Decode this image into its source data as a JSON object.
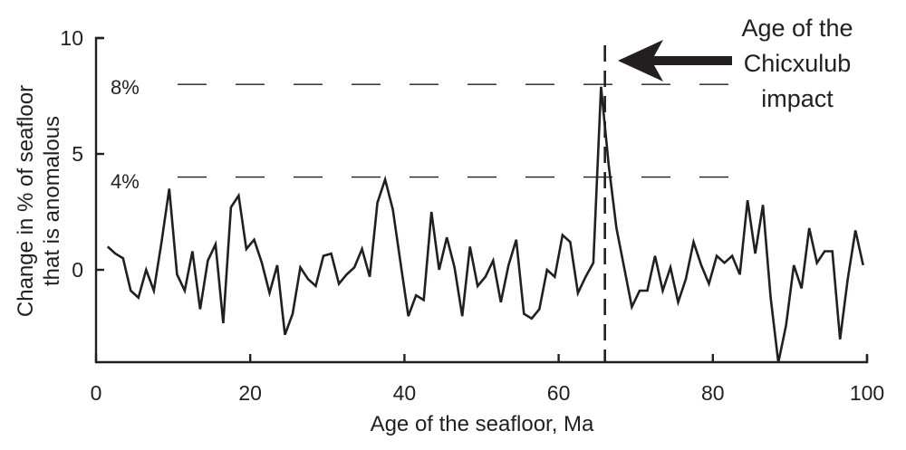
{
  "chart_data": {
    "type": "line",
    "title": "",
    "xlabel": "Age of the seafloor, Ma",
    "ylabel": "Change in % of seafloor that is anomalous",
    "ylabel_lines": [
      "Change in % of seafloor",
      "that is anomalous"
    ],
    "xlim": [
      0,
      100
    ],
    "ylim": [
      -4,
      10
    ],
    "x_ticks": [
      0,
      20,
      40,
      60,
      80,
      100
    ],
    "x_tick_labels": [
      "0",
      "20",
      "40",
      "60",
      "80",
      "100"
    ],
    "y_ticks": [
      0,
      5,
      10
    ],
    "y_tick_labels": [
      "0",
      "5",
      "10"
    ],
    "grid": false,
    "legend": null,
    "series": [
      {
        "name": "anomalous seafloor change",
        "color": "#231f20",
        "x": [
          1.5,
          2.5,
          3.5,
          4.5,
          5.5,
          6.5,
          7.5,
          8.5,
          9.5,
          10.5,
          11.5,
          12.5,
          13.5,
          14.5,
          15.5,
          16.5,
          17.5,
          18.5,
          19.5,
          20.5,
          21.5,
          22.5,
          23.5,
          24.5,
          25.5,
          26.5,
          27.5,
          28.5,
          29.5,
          30.5,
          31.5,
          32.5,
          33.5,
          34.5,
          35.5,
          36.5,
          37.5,
          38.5,
          39.5,
          40.5,
          41.5,
          42.5,
          43.5,
          44.5,
          45.5,
          46.5,
          47.5,
          48.5,
          49.5,
          50.5,
          51.5,
          52.5,
          53.5,
          54.5,
          55.5,
          56.5,
          57.5,
          58.5,
          59.5,
          60.5,
          61.5,
          62.5,
          63.5,
          64.5,
          65.5,
          66.5,
          67.5,
          68.5,
          69.5,
          70.5,
          71.5,
          72.5,
          73.5,
          74.5,
          75.5,
          76.5,
          77.5,
          78.5,
          79.5,
          80.5,
          81.5,
          82.5,
          83.5,
          84.5,
          85.5,
          86.5,
          87.5,
          88.5,
          89.5,
          90.5,
          91.5,
          92.5,
          93.5,
          94.5,
          95.5,
          96.5,
          97.5,
          98.5,
          99.5
        ],
        "y": [
          1.0,
          0.7,
          0.5,
          -0.9,
          -1.2,
          0.0,
          -0.9,
          1.2,
          3.5,
          -0.2,
          -0.9,
          0.8,
          -1.7,
          0.4,
          1.1,
          -2.3,
          2.7,
          3.2,
          0.9,
          1.3,
          0.3,
          -1.0,
          0.2,
          -2.8,
          -1.9,
          0.1,
          -0.4,
          -0.7,
          0.6,
          0.7,
          -0.6,
          -0.2,
          0.1,
          0.9,
          -0.3,
          2.9,
          3.9,
          2.6,
          0.3,
          -2.0,
          -1.1,
          -1.3,
          2.5,
          0.0,
          1.4,
          0.1,
          -2.0,
          1.0,
          -0.7,
          -0.3,
          0.4,
          -1.4,
          0.2,
          1.3,
          -1.9,
          -2.1,
          -1.7,
          0.0,
          -0.3,
          1.5,
          1.2,
          -1.0,
          -0.3,
          0.3,
          7.9,
          4.5,
          1.8,
          0.1,
          -1.6,
          -0.9,
          -0.9,
          0.6,
          -0.9,
          0.1,
          -1.4,
          -0.4,
          1.2,
          0.2,
          -0.6,
          0.6,
          0.3,
          0.6,
          -0.2,
          3.0,
          0.7,
          2.8,
          -1.2,
          -4.0,
          -2.4,
          0.2,
          -0.8,
          1.8,
          0.3,
          0.8,
          0.8,
          -3.0,
          -0.4,
          1.7,
          0.2
        ]
      }
    ],
    "reference_lines": [
      {
        "type": "horizontal",
        "y": 8,
        "label": "8%",
        "style": "dashed",
        "x_range": [
          5,
          84
        ]
      },
      {
        "type": "horizontal",
        "y": 4,
        "label": "4%",
        "style": "dashed",
        "x_range": [
          5,
          84
        ]
      },
      {
        "type": "vertical",
        "x": 66,
        "style": "dashed",
        "label": "Age of the Chicxulub impact"
      }
    ],
    "annotations": [
      {
        "text": "Age of the Chicxulub impact",
        "lines": [
          "Age of the",
          "Chicxulub",
          "impact"
        ],
        "arrow_to_x": 66,
        "arrow_y": 9
      }
    ]
  }
}
